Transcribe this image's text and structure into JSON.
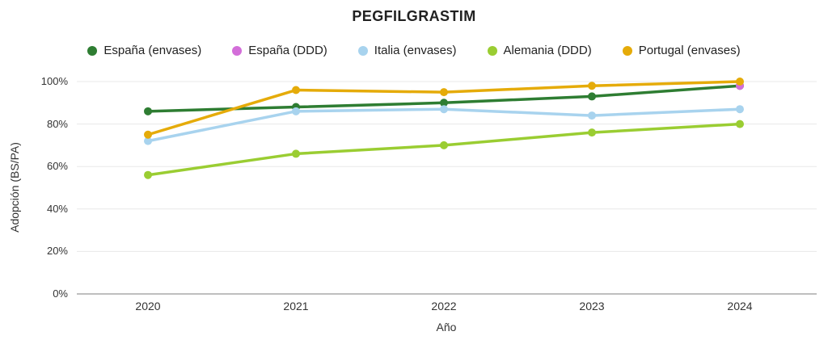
{
  "title": "PEGFILGRASTIM",
  "chart_data": {
    "type": "line",
    "title": "PEGFILGRASTIM",
    "xlabel": "Año",
    "ylabel": "Adopción (BS/PA)",
    "categories": [
      "2020",
      "2021",
      "2022",
      "2023",
      "2024"
    ],
    "series": [
      {
        "name": "España (envases)",
        "color": "#2e7d32",
        "values": [
          86,
          88,
          90,
          93,
          98
        ]
      },
      {
        "name": "España (DDD)",
        "color": "#d36ed9",
        "values": [
          null,
          null,
          null,
          null,
          98
        ]
      },
      {
        "name": "Italia (envases)",
        "color": "#a8d3ee",
        "values": [
          72,
          86,
          87,
          84,
          87
        ]
      },
      {
        "name": "Alemania (DDD)",
        "color": "#9acd32",
        "values": [
          56,
          66,
          70,
          76,
          80
        ]
      },
      {
        "name": "Portugal (envases)",
        "color": "#e5ab09",
        "values": [
          75,
          96,
          95,
          98,
          100
        ]
      }
    ],
    "ylim": [
      0,
      100
    ],
    "y_ticks": [
      "0%",
      "20%",
      "40%",
      "60%",
      "80%",
      "100%"
    ],
    "y_tick_values": [
      0,
      20,
      40,
      60,
      80,
      100
    ],
    "grid": true,
    "legend_position": "top",
    "colors": {
      "gridline": "#e8e8e8",
      "axis_line": "#aaaaaa",
      "text": "#333333",
      "title_text": "#212121"
    }
  }
}
